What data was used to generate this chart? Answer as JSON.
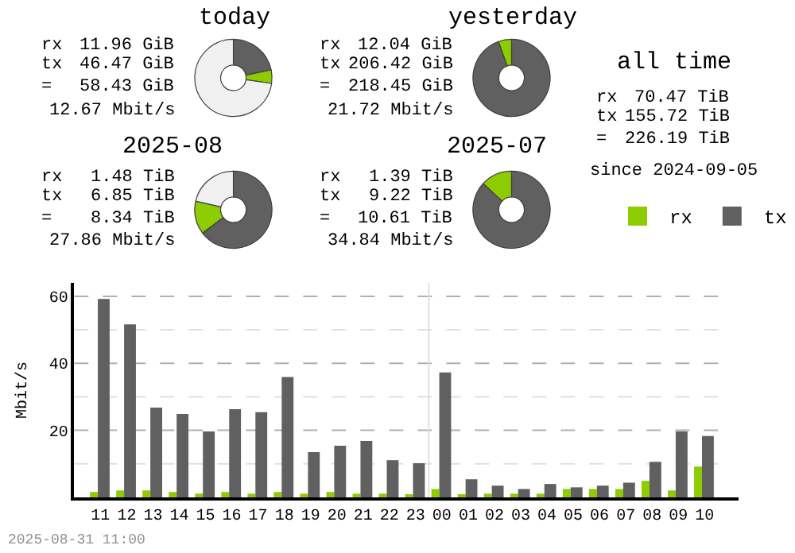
{
  "chart_data": [
    {
      "type": "donut",
      "title": "today",
      "categories": [
        null,
        null,
        null
      ],
      "values": [
        21.7,
        5.6,
        72.7
      ],
      "colors": [
        "#606060",
        "#8ccc00",
        "#f0f0f0"
      ],
      "annotations": [
        "rx",
        "11.96 GiB",
        "tx",
        "46.47 GiB",
        "=",
        "58.43 GiB",
        "12.67 Mbit/s"
      ]
    },
    {
      "type": "donut",
      "title": "yesterday",
      "categories": [
        null,
        null
      ],
      "values": [
        94.5,
        5.5
      ],
      "colors": [
        "#606060",
        "#8ccc00"
      ],
      "annotations": [
        "rx",
        "12.04 GiB",
        "tx",
        "206.42 GiB",
        "=",
        "218.45 GiB",
        "21.72 Mbit/s"
      ]
    },
    {
      "type": "other",
      "title": "all time",
      "annotations": [
        "rx",
        "70.47 TiB",
        "tx",
        "155.72 TiB",
        "=",
        "226.19 TiB",
        "since 2024-09-05"
      ]
    },
    {
      "type": "donut",
      "title": "2025-08",
      "categories": [
        null,
        null,
        null
      ],
      "values": [
        64.7,
        13.9,
        21.4
      ],
      "colors": [
        "#606060",
        "#8ccc00",
        "#f0f0f0"
      ],
      "annotations": [
        "rx",
        "1.48 TiB",
        "tx",
        "6.85 TiB",
        "=",
        "8.34 TiB",
        "27.86 Mbit/s"
      ]
    },
    {
      "type": "donut",
      "title": "2025-07",
      "categories": [
        null,
        null
      ],
      "values": [
        86.9,
        13.1
      ],
      "colors": [
        "#606060",
        "#8ccc00"
      ],
      "annotations": [
        "rx",
        "1.39 TiB",
        "tx",
        "9.22 TiB",
        "=",
        "10.61 TiB",
        "34.84 Mbit/s"
      ]
    },
    {
      "type": "bar",
      "ylabel": "Mbit/s",
      "categories": [
        "11",
        "12",
        "13",
        "14",
        "15",
        "16",
        "17",
        "18",
        "19",
        "20",
        "21",
        "22",
        "23",
        "00",
        "01",
        "02",
        "03",
        "04",
        "05",
        "06",
        "07",
        "08",
        "09",
        "10"
      ],
      "series": [
        {
          "name": "rx",
          "color": "#8ccc00",
          "values": [
            1.6,
            2.1,
            2.1,
            1.6,
            1.1,
            1.6,
            1.1,
            1.6,
            1.1,
            1.6,
            1.1,
            1.1,
            0.6,
            2.5,
            0.6,
            1.1,
            1.1,
            1.1,
            2.5,
            2.5,
            2.5,
            4.9,
            2.1,
            9.2
          ]
        },
        {
          "name": "tx",
          "color": "#606060",
          "values": [
            59.2,
            51.6,
            26.8,
            24.9,
            19.7,
            26.3,
            25.4,
            35.9,
            13.5,
            15.4,
            16.8,
            11.1,
            10.2,
            37.3,
            5.4,
            3.5,
            2.5,
            4.0,
            3.0,
            3.5,
            4.4,
            10.6,
            19.7,
            18.3
          ]
        }
      ],
      "ylim": [
        0,
        64
      ],
      "yticks": [
        {
          "value": 10,
          "label": null
        },
        20,
        {
          "value": 30,
          "label": null
        },
        40,
        {
          "value": 50,
          "label": null
        },
        60
      ],
      "grid": "y",
      "legend": "top right",
      "ref_lines": [
        {
          "axis": "x",
          "value": "00",
          "color": "#e0e0e0"
        }
      ],
      "annotations": [
        "2025-08-31 11:00"
      ]
    }
  ]
}
